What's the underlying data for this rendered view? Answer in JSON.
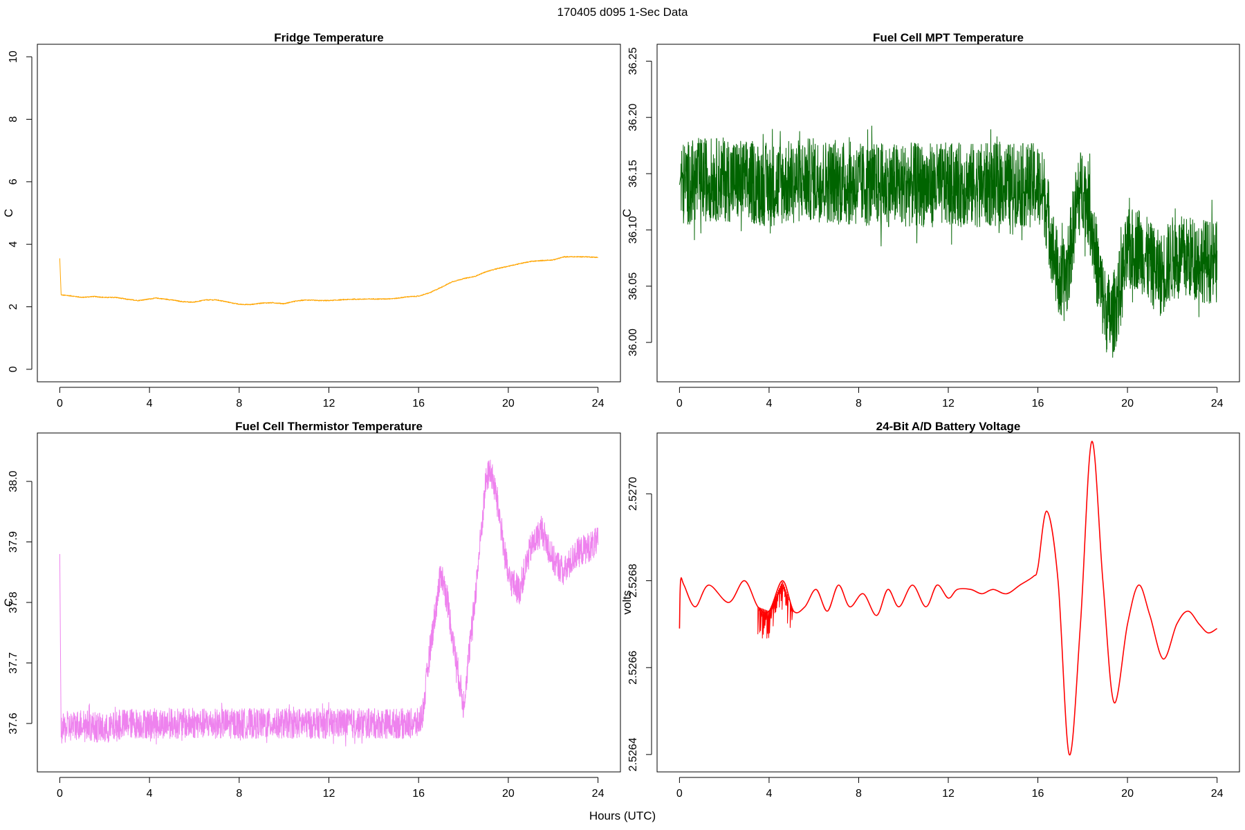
{
  "figure": {
    "title": "170405   d095   1-Sec Data",
    "xlabel": "Hours (UTC)"
  },
  "chart_data": [
    {
      "type": "line",
      "title": "Fridge Temperature",
      "xlabel": "",
      "ylabel": "C",
      "color": "#FFA500",
      "xlim": [
        -1,
        25
      ],
      "ylim": [
        -0.4,
        10.4
      ],
      "xticks": [
        0,
        4,
        8,
        12,
        16,
        20,
        24
      ],
      "yticks": [
        0,
        2,
        4,
        6,
        8,
        10
      ],
      "ytick_labels": [
        "0",
        "2",
        "4",
        "6",
        "8",
        "10"
      ],
      "noise": 0.03,
      "series": [
        {
          "x": [
            0,
            0.02,
            0.05,
            0.5,
            1,
            1.5,
            2,
            2.5,
            3,
            3.5,
            4,
            4.3,
            5,
            5.5,
            6,
            6.5,
            7,
            7.5,
            8,
            8.5,
            9,
            9.5,
            10,
            10.5,
            11,
            11.5,
            12,
            13,
            14,
            14.5,
            15,
            15.5,
            16,
            16.5,
            17,
            17.5,
            18,
            18.5,
            19,
            19.5,
            20,
            20.5,
            21,
            21.5,
            22,
            22.5,
            23,
            23.5,
            24
          ],
          "y": [
            3.55,
            2.45,
            2.38,
            2.35,
            2.3,
            2.33,
            2.3,
            2.3,
            2.24,
            2.2,
            2.25,
            2.28,
            2.22,
            2.16,
            2.15,
            2.22,
            2.22,
            2.15,
            2.08,
            2.07,
            2.12,
            2.13,
            2.1,
            2.18,
            2.22,
            2.2,
            2.2,
            2.24,
            2.25,
            2.25,
            2.27,
            2.32,
            2.34,
            2.45,
            2.62,
            2.8,
            2.9,
            2.97,
            3.12,
            3.22,
            3.3,
            3.38,
            3.45,
            3.48,
            3.5,
            3.6,
            3.6,
            3.6,
            3.58
          ]
        }
      ]
    },
    {
      "type": "line",
      "title": "Fuel Cell MPT Temperature",
      "xlabel": "",
      "ylabel": "C",
      "color": "#006400",
      "xlim": [
        -1,
        25
      ],
      "ylim": [
        35.965,
        36.265
      ],
      "xticks": [
        0,
        4,
        8,
        12,
        16,
        20,
        24
      ],
      "yticks": [
        36.0,
        36.05,
        36.1,
        36.15,
        36.2,
        36.25
      ],
      "ytick_labels": [
        "36.00",
        "36.05",
        "36.10",
        "36.15",
        "36.20",
        "36.25"
      ],
      "noise": 0.075,
      "series": [
        {
          "x": [
            0,
            1,
            2,
            4,
            6,
            8,
            10,
            12,
            14,
            15,
            16,
            16.3,
            16.7,
            17,
            17.3,
            17.7,
            18,
            18.3,
            18.7,
            19,
            19.3,
            19.7,
            20,
            20.5,
            21,
            21.5,
            22,
            23,
            24
          ],
          "y": [
            36.14,
            36.145,
            36.145,
            36.14,
            36.145,
            36.14,
            36.14,
            36.14,
            36.14,
            36.14,
            36.14,
            36.13,
            36.08,
            36.05,
            36.06,
            36.12,
            36.14,
            36.12,
            36.06,
            36.03,
            36.02,
            36.05,
            36.08,
            36.085,
            36.07,
            36.06,
            36.075,
            36.075,
            36.07
          ]
        }
      ]
    },
    {
      "type": "line",
      "title": "Fuel Cell Thermistor Temperature",
      "xlabel": "",
      "ylabel": "C",
      "color": "#EE82EE",
      "xlim": [
        -1,
        25
      ],
      "ylim": [
        37.52,
        38.08
      ],
      "xticks": [
        0,
        4,
        8,
        12,
        16,
        20,
        24
      ],
      "yticks": [
        37.6,
        37.7,
        37.8,
        37.9,
        38.0
      ],
      "ytick_labels": [
        "37.6",
        "37.7",
        "37.8",
        "37.9",
        "38.0"
      ],
      "noise": 0.05,
      "series": [
        {
          "x": [
            0,
            0.02,
            0.05,
            1,
            2,
            3,
            4,
            5,
            6,
            7,
            8,
            9,
            10,
            11,
            12,
            13,
            14,
            15,
            16,
            16.2,
            16.5,
            17,
            17.3,
            17.6,
            18,
            18.5,
            19,
            19.2,
            19.5,
            20,
            20.5,
            21,
            21.5,
            22,
            22.5,
            23,
            24
          ],
          "y": [
            37.88,
            37.6,
            37.59,
            37.6,
            37.59,
            37.6,
            37.6,
            37.6,
            37.6,
            37.6,
            37.6,
            37.6,
            37.6,
            37.6,
            37.6,
            37.6,
            37.6,
            37.6,
            37.6,
            37.62,
            37.72,
            37.85,
            37.8,
            37.72,
            37.63,
            37.8,
            38.0,
            38.02,
            37.97,
            37.84,
            37.82,
            37.89,
            37.92,
            37.87,
            37.85,
            37.88,
            37.9
          ]
        }
      ]
    },
    {
      "type": "line",
      "title": "24-Bit A/D Battery Voltage",
      "xlabel": "",
      "ylabel": "volts",
      "color": "#FF0000",
      "xlim": [
        -1,
        25
      ],
      "ylim": [
        2.52636,
        2.52714
      ],
      "xticks": [
        0,
        4,
        8,
        12,
        16,
        20,
        24
      ],
      "yticks": [
        2.5264,
        2.5266,
        2.5268,
        2.527
      ],
      "ytick_labels": [
        "2.5264",
        "2.5266",
        "2.5268",
        "2.5270"
      ],
      "noise": 0.0,
      "series": [
        {
          "x": [
            0,
            0.05,
            0.2,
            0.7,
            1.3,
            2.2,
            2.9,
            3.5,
            4.0,
            4.6,
            5.1,
            5.6,
            6.1,
            6.6,
            7.1,
            7.6,
            8.2,
            8.8,
            9.3,
            9.8,
            10.4,
            11.0,
            11.5,
            12.0,
            12.4,
            13.0,
            13.5,
            14.0,
            14.6,
            15.2,
            15.8,
            16.0,
            16.4,
            16.9,
            17.4,
            17.9,
            18.4,
            18.9,
            19.4,
            20.0,
            20.5,
            21.0,
            21.6,
            22.2,
            22.7,
            23.2,
            23.6,
            24.0
          ],
          "y": [
            2.52669,
            2.5268,
            2.52679,
            2.52674,
            2.52679,
            2.52675,
            2.5268,
            2.52674,
            2.52673,
            2.5268,
            2.52673,
            2.52674,
            2.52678,
            2.52673,
            2.52679,
            2.52674,
            2.52677,
            2.52672,
            2.52678,
            2.52674,
            2.52679,
            2.52674,
            2.52679,
            2.52676,
            2.52678,
            2.52678,
            2.52677,
            2.52678,
            2.52677,
            2.52679,
            2.52681,
            2.52683,
            2.52696,
            2.5268,
            2.5264,
            2.5267,
            2.52712,
            2.5268,
            2.52652,
            2.5267,
            2.52679,
            2.52672,
            2.52662,
            2.5267,
            2.52673,
            2.5267,
            2.52668,
            2.52669
          ]
        }
      ]
    }
  ]
}
